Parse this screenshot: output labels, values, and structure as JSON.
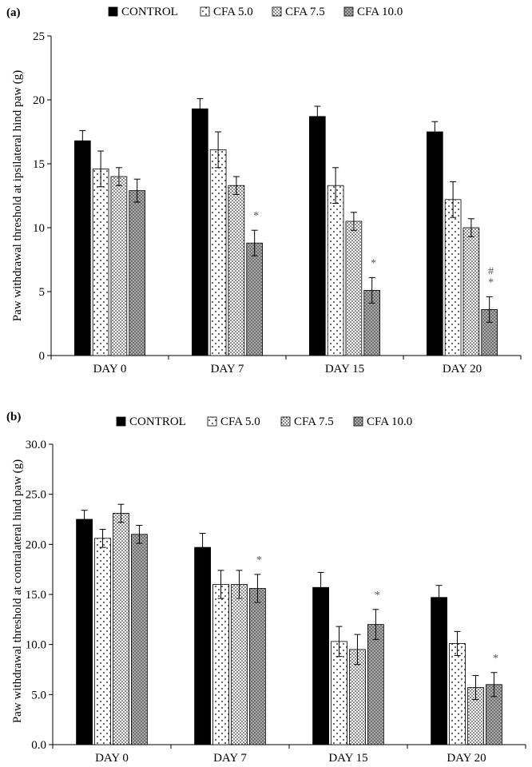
{
  "figure": {
    "panels": [
      {
        "label": "(a)"
      },
      {
        "label": "(b)"
      }
    ]
  },
  "chart_data": [
    {
      "type": "bar",
      "panel": "(a)",
      "ylabel": "Paw withdrawal threshold at ipsilateral hind paw (g)",
      "xlabel": "",
      "categories": [
        "DAY 0",
        "DAY 7",
        "DAY 15",
        "DAY 20"
      ],
      "ylim": [
        0,
        25
      ],
      "yticks": [
        0,
        5,
        10,
        15,
        20,
        25
      ],
      "ytick_labels": [
        "0",
        "5",
        "10",
        "15",
        "20",
        "25"
      ],
      "grid": false,
      "legend_position": "top",
      "series": [
        {
          "name": "CONTROL",
          "pattern": "solid-black",
          "values": [
            16.8,
            19.3,
            18.7,
            17.5
          ],
          "errors": [
            0.8,
            0.8,
            0.8,
            0.8
          ]
        },
        {
          "name": "CFA 5.0",
          "pattern": "sparse-dots",
          "values": [
            14.6,
            16.1,
            13.3,
            12.2
          ],
          "errors": [
            1.4,
            1.4,
            1.4,
            1.4
          ]
        },
        {
          "name": "CFA 7.5",
          "pattern": "dense-dots",
          "values": [
            14.0,
            13.3,
            10.5,
            10.0
          ],
          "errors": [
            0.7,
            0.7,
            0.7,
            0.7
          ]
        },
        {
          "name": "CFA 10.0",
          "pattern": "dark-crosshatch",
          "values": [
            12.9,
            8.8,
            5.1,
            3.6
          ],
          "errors": [
            0.9,
            1.0,
            1.0,
            1.0
          ]
        }
      ],
      "annotations": [
        {
          "category": "DAY 7",
          "series": "CFA 10.0",
          "text": "*"
        },
        {
          "category": "DAY 15",
          "series": "CFA 10.0",
          "text": "*"
        },
        {
          "category": "DAY 20",
          "series": "CFA 10.0",
          "text": "#"
        },
        {
          "category": "DAY 20",
          "series": "CFA 10.0",
          "text": "*"
        }
      ]
    },
    {
      "type": "bar",
      "panel": "(b)",
      "ylabel": "Paw withdrawal threshold at contralateral hind paw (g)",
      "xlabel": "",
      "categories": [
        "DAY 0",
        "DAY 7",
        "DAY 15",
        "DAY 20"
      ],
      "ylim": [
        0,
        30
      ],
      "yticks": [
        0,
        5,
        10,
        15,
        20,
        25,
        30
      ],
      "ytick_labels": [
        "0.0",
        "5.0",
        "10.0",
        "15.0",
        "20.0",
        "25.0",
        "30.0"
      ],
      "grid": false,
      "legend_position": "top",
      "series": [
        {
          "name": "CONTROL",
          "pattern": "solid-black",
          "values": [
            22.5,
            19.7,
            15.7,
            14.7
          ],
          "errors": [
            0.9,
            1.4,
            1.5,
            1.2
          ]
        },
        {
          "name": "CFA 5.0",
          "pattern": "sparse-dots",
          "values": [
            20.6,
            16.0,
            10.3,
            10.1
          ],
          "errors": [
            0.9,
            1.4,
            1.5,
            1.2
          ]
        },
        {
          "name": "CFA 7.5",
          "pattern": "dense-dots",
          "values": [
            23.1,
            16.0,
            9.5,
            5.7
          ],
          "errors": [
            0.9,
            1.4,
            1.5,
            1.2
          ]
        },
        {
          "name": "CFA 10.0",
          "pattern": "dark-crosshatch",
          "values": [
            21.0,
            15.6,
            12.0,
            6.0
          ],
          "errors": [
            0.9,
            1.4,
            1.5,
            1.2
          ]
        }
      ],
      "annotations": [
        {
          "category": "DAY 7",
          "series": "CFA 10.0",
          "text": "*"
        },
        {
          "category": "DAY 15",
          "series": "CFA 10.0",
          "text": "*"
        },
        {
          "category": "DAY 20",
          "series": "CFA 10.0",
          "text": "*"
        }
      ]
    }
  ]
}
